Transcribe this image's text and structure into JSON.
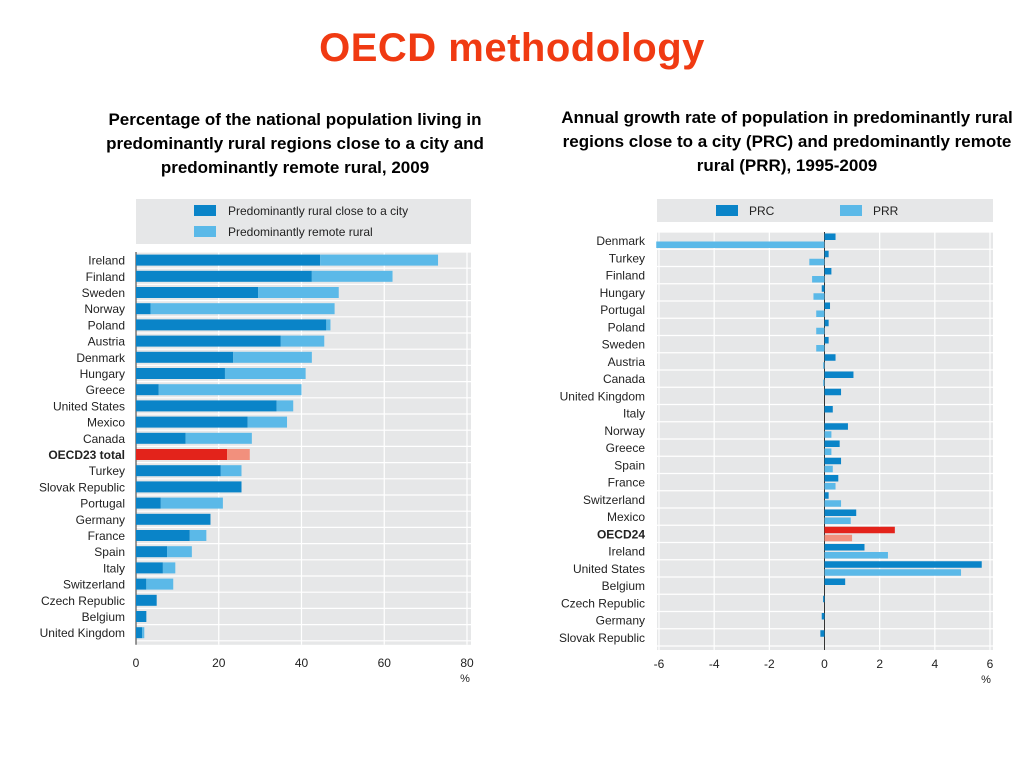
{
  "slide": {
    "title": "OECD methodology"
  },
  "colors": {
    "prc": "#0a84c8",
    "prr": "#5bb9e8",
    "highlight_prc": "#e3231b",
    "highlight_prr": "#f2907d",
    "title": "#f03a12",
    "panel": "#e6e7e8"
  },
  "chart_data": [
    {
      "type": "bar",
      "orientation": "horizontal",
      "stacked": true,
      "title": "Percentage of the national population living in predominantly rural regions close to a city and predominantly remote rural, 2009",
      "unit": "%",
      "xlim": [
        0,
        80
      ],
      "x_ticks": [
        "0",
        "20",
        "40",
        "60",
        "80"
      ],
      "grid": true,
      "legend_position": "top",
      "highlight": "OECD23 total",
      "categories": [
        "Ireland",
        "Finland",
        "Sweden",
        "Norway",
        "Poland",
        "Austria",
        "Denmark",
        "Hungary",
        "Greece",
        "United States",
        "Mexico",
        "Canada",
        "OECD23 total",
        "Turkey",
        "Slovak Republic",
        "Portugal",
        "Germany",
        "France",
        "Spain",
        "Italy",
        "Switzerland",
        "Czech Republic",
        "Belgium",
        "United Kingdom"
      ],
      "series": [
        {
          "name": "Predominantly rural close to a city",
          "values": [
            44.5,
            42.5,
            29.5,
            3.5,
            46,
            35,
            23.5,
            21.5,
            5.5,
            34,
            27,
            12,
            22,
            20.5,
            25.5,
            6,
            18,
            13,
            7.5,
            6.5,
            2.5,
            5,
            2.5,
            1.5
          ]
        },
        {
          "name": "Predominantly remote rural",
          "values": [
            28.5,
            19.5,
            19.5,
            44.5,
            1,
            10.5,
            19,
            19.5,
            34.5,
            4,
            9.5,
            16,
            5.5,
            5,
            0,
            15,
            0,
            4,
            6,
            3,
            6.5,
            0,
            0,
            0.5
          ]
        }
      ]
    },
    {
      "type": "bar",
      "orientation": "horizontal",
      "grouped": true,
      "title": "Annual growth rate of population in predominantly rural regions close to a city (PRC) and predominantly remote rural (PRR), 1995-2009",
      "unit": "%",
      "xlim": [
        -6,
        6
      ],
      "x_ticks": [
        "-6",
        "-4",
        "-2",
        "0",
        "2",
        "4",
        "6"
      ],
      "grid": true,
      "legend_position": "top",
      "highlight": "OECD24",
      "categories": [
        "Denmark",
        "Turkey",
        "Finland",
        "Hungary",
        "Portugal",
        "Poland",
        "Sweden",
        "Austria",
        "Canada",
        "United Kingdom",
        "Italy",
        "Norway",
        "Greece",
        "Spain",
        "France",
        "Switzerland",
        "Mexico",
        "OECD24",
        "Ireland",
        "United States",
        "Belgium",
        "Czech Republic",
        "Germany",
        "Slovak Republic"
      ],
      "series": [
        {
          "name": "PRC",
          "values": [
            0.4,
            0.15,
            0.25,
            -0.1,
            0.2,
            0.15,
            0.15,
            0.4,
            1.05,
            0.6,
            0.3,
            0.85,
            0.55,
            0.6,
            0.5,
            0.15,
            1.15,
            2.55,
            1.45,
            5.7,
            0.75,
            -0.05,
            -0.1,
            -0.15
          ]
        },
        {
          "name": "PRR",
          "values": [
            -6.1,
            -0.55,
            -0.45,
            -0.4,
            -0.3,
            -0.3,
            -0.3,
            -0.05,
            -0.05,
            null,
            null,
            0.25,
            0.25,
            0.3,
            0.4,
            0.6,
            0.95,
            1.0,
            2.3,
            4.95,
            null,
            null,
            null,
            null
          ]
        }
      ]
    }
  ]
}
